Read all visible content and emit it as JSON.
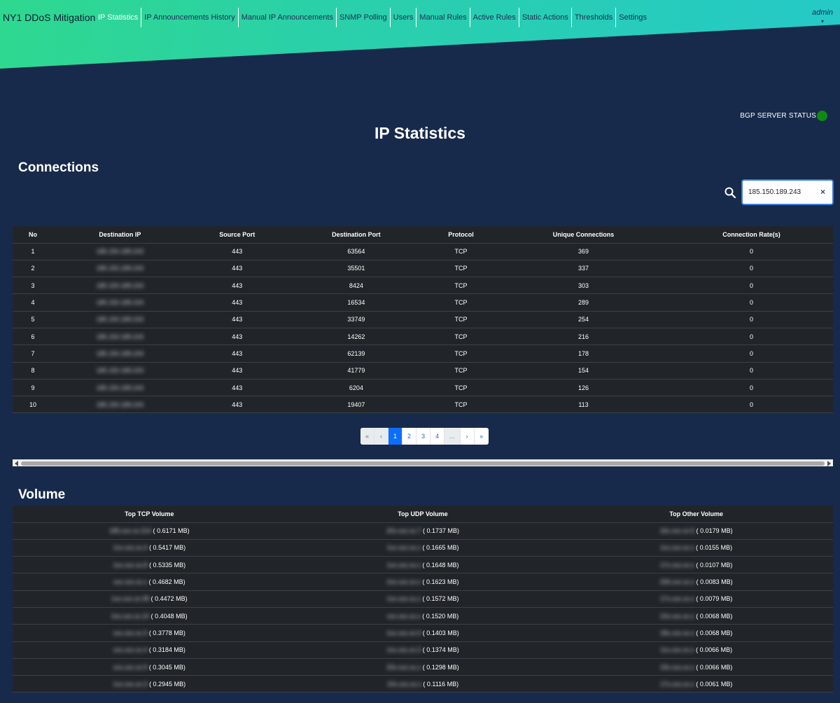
{
  "brand": "NY1 DDoS Mitigation",
  "nav": [
    {
      "label": "IP Statistics",
      "active": true
    },
    {
      "label": "IP Announcements History",
      "active": false
    },
    {
      "label": "Manual IP Announcements",
      "active": false
    },
    {
      "label": "SNMP Polling",
      "active": false
    },
    {
      "label": "Users",
      "active": false
    },
    {
      "label": "Manual Rules",
      "active": false
    },
    {
      "label": "Active Rules",
      "active": false
    },
    {
      "label": "Static Actions",
      "active": false
    },
    {
      "label": "Thresholds",
      "active": false
    },
    {
      "label": "Settings",
      "active": false
    }
  ],
  "user": {
    "name": "admin",
    "caret": "▾"
  },
  "status": {
    "label": "BGP SERVER STATUS",
    "color": "#0e8a12"
  },
  "page_title": "IP Statistics",
  "connections": {
    "title": "Connections",
    "search_value": "185.150.189.243",
    "clear_label": "×",
    "columns": [
      "No",
      "Destination IP",
      "Source Port",
      "Destination Port",
      "Protocol",
      "Unique Connections",
      "Connection Rate(s)"
    ],
    "rows": [
      [
        "1",
        "185.150.189.243",
        "443",
        "63564",
        "TCP",
        "369",
        "0"
      ],
      [
        "2",
        "185.150.189.243",
        "443",
        "35501",
        "TCP",
        "337",
        "0"
      ],
      [
        "3",
        "185.150.189.243",
        "443",
        "8424",
        "TCP",
        "303",
        "0"
      ],
      [
        "4",
        "185.150.189.243",
        "443",
        "16534",
        "TCP",
        "289",
        "0"
      ],
      [
        "5",
        "185.150.189.243",
        "443",
        "33749",
        "TCP",
        "254",
        "0"
      ],
      [
        "6",
        "185.150.189.243",
        "443",
        "14262",
        "TCP",
        "216",
        "0"
      ],
      [
        "7",
        "185.150.189.243",
        "443",
        "62139",
        "TCP",
        "178",
        "0"
      ],
      [
        "8",
        "185.150.189.243",
        "443",
        "41779",
        "TCP",
        "154",
        "0"
      ],
      [
        "9",
        "185.150.189.243",
        "443",
        "6204",
        "TCP",
        "126",
        "0"
      ],
      [
        "10",
        "185.150.189.243",
        "443",
        "19407",
        "TCP",
        "113",
        "0"
      ]
    ],
    "pagination": [
      "«",
      "‹",
      "1",
      "2",
      "3",
      "4",
      "...",
      "›",
      "»"
    ]
  },
  "volume": {
    "title": "Volume",
    "columns": [
      "Top TCP Volume",
      "Top UDP Volume",
      "Top Other Volume"
    ],
    "rows": [
      [
        {
          "ip": "185.xxx.xx.214",
          "vol": " ( 0.6171 MB)"
        },
        {
          "ip": "20x.xxx.xx.7",
          "vol": " ( 0.1737 MB)"
        },
        {
          "ip": "16x.xxx.xx.5",
          "vol": " ( 0.0179 MB)"
        }
      ],
      [
        {
          "ip": "1xx.xxx.xx.4",
          "vol": " ( 0.5417 MB)"
        },
        {
          "ip": "1xx.xxx.xx.x",
          "vol": " ( 0.1665 MB)"
        },
        {
          "ip": "1xx.xxx.xx.x",
          "vol": " ( 0.0155 MB)"
        }
      ],
      [
        {
          "ip": "1xx.xxx.xx.8",
          "vol": " ( 0.5335 MB)"
        },
        {
          "ip": "1xx.xxx.xx.x",
          "vol": " ( 0.1648 MB)"
        },
        {
          "ip": "17x.xxx.xx.x",
          "vol": " ( 0.0107 MB)"
        }
      ],
      [
        {
          "ip": "xxx.xxx.xx.x",
          "vol": " ( 0.4682 MB)"
        },
        {
          "ip": "2xx.xxx.xx.x",
          "vol": " ( 0.1623 MB)"
        },
        {
          "ip": "206.xxx.xx.x",
          "vol": " ( 0.0083 MB)"
        }
      ],
      [
        {
          "ip": "1xx.xxx.xx.08",
          "vol": " ( 0.4472 MB)"
        },
        {
          "ip": "1xx.xxx.xx.x",
          "vol": " ( 0.1572 MB)"
        },
        {
          "ip": "17x.xxx.xx.x",
          "vol": " ( 0.0079 MB)"
        }
      ],
      [
        {
          "ip": "2xx.xxx.xx.10",
          "vol": " ( 0.4048 MB)"
        },
        {
          "ip": "xxx.xxx.xx.x",
          "vol": " ( 0.1520 MB)"
        },
        {
          "ip": "10x.xxx.xx.x",
          "vol": " ( 0.0068 MB)"
        }
      ],
      [
        {
          "ip": "xxx.xxx.xx.3",
          "vol": " ( 0.3778 MB)"
        },
        {
          "ip": "1xx.xxx.xx.0",
          "vol": " ( 0.1403 MB)"
        },
        {
          "ip": "18x.xxx.xx.x",
          "vol": " ( 0.0068 MB)"
        }
      ],
      [
        {
          "ip": "xxx.xxx.xx.4",
          "vol": " ( 0.3184 MB)"
        },
        {
          "ip": "1xx.xxx.xx.2",
          "vol": " ( 0.1374 MB)"
        },
        {
          "ip": "1xx.xxx.xx.x",
          "vol": " ( 0.0066 MB)"
        }
      ],
      [
        {
          "ip": "xxx.xxx.xx.9",
          "vol": " ( 0.3045 MB)"
        },
        {
          "ip": "20x.xxx.xx.x",
          "vol": " ( 0.1298 MB)"
        },
        {
          "ip": "15x.xxx.xx.x",
          "vol": " ( 0.0066 MB)"
        }
      ],
      [
        {
          "ip": "1xx.xxx.xx.3",
          "vol": " ( 0.2945 MB)"
        },
        {
          "ip": "10x.xxx.xx.x",
          "vol": " ( 0.1116 MB)"
        },
        {
          "ip": "17x.xxx.xx.x",
          "vol": " ( 0.0061 MB)"
        }
      ]
    ]
  }
}
